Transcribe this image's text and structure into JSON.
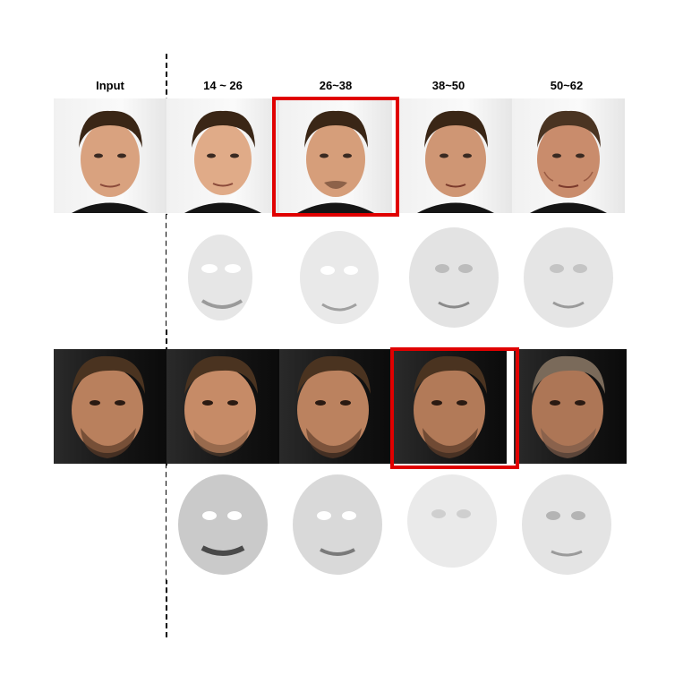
{
  "columns": {
    "input": "Input",
    "range_1": "14 ~ 26",
    "range_2": "26~38",
    "range_3": "38~50",
    "range_4": "50~62"
  },
  "rows": [
    {
      "subject": "face-1",
      "photo_background": "light",
      "selected_range": "26~38"
    },
    {
      "subject": "face-2",
      "photo_background": "dark",
      "selected_range": "38~50"
    }
  ],
  "colors": {
    "highlight": "#e00000",
    "skin_light": "#d9a27f",
    "skin_dark": "#b9805d",
    "hair": "#3a2616",
    "shirt": "#151515"
  }
}
